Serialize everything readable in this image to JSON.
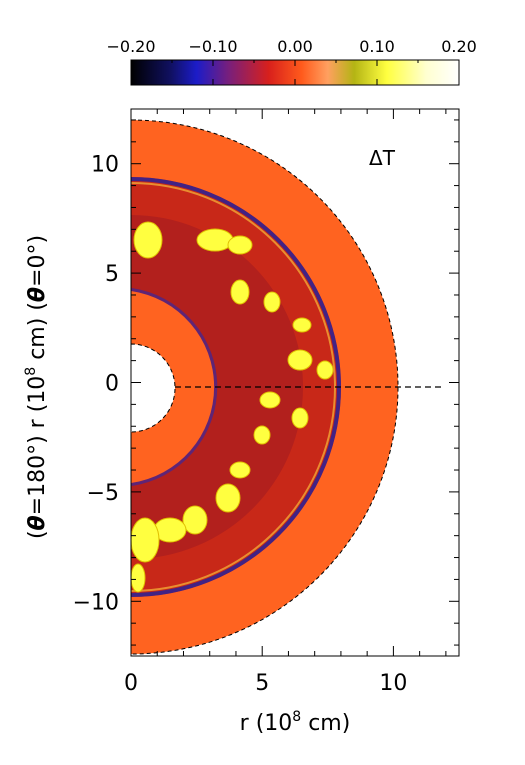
{
  "chart_data": {
    "type": "heatmap",
    "annotation": "ΔT",
    "colorbar": {
      "range": [
        -0.2,
        0.2
      ],
      "ticks": [
        -0.2,
        -0.1,
        0.0,
        0.1,
        0.2
      ],
      "tick_labels": [
        "−0.20",
        "−0.10",
        "0.00",
        "0.10",
        "0.20"
      ],
      "colors": [
        "#000000",
        "#1c1cc8",
        "#7a1f7a",
        "#e8281e",
        "#ff6a20",
        "#ffb070",
        "#b4b414",
        "#ffff40",
        "#ffffe8",
        "#ffffff"
      ]
    },
    "xaxis": {
      "label": "r (10^8 cm)",
      "range": [
        0,
        12.5
      ],
      "ticks": [
        0,
        5,
        10
      ],
      "tick_labels": [
        "0",
        "5",
        "10"
      ]
    },
    "yaxis": {
      "label": "(θ=180°) r (10^8 cm) (θ=0°)",
      "range": [
        -12.5,
        12.5
      ],
      "ticks": [
        -10,
        -5,
        0,
        5,
        10
      ],
      "tick_labels": [
        "−10",
        "−5",
        "0",
        "5",
        "10"
      ]
    },
    "radii": {
      "inner_boundary": 2.0,
      "convective_zone_inner": 4.3,
      "convective_zone_outer": 9.3,
      "outer_boundary": 12.0
    }
  }
}
